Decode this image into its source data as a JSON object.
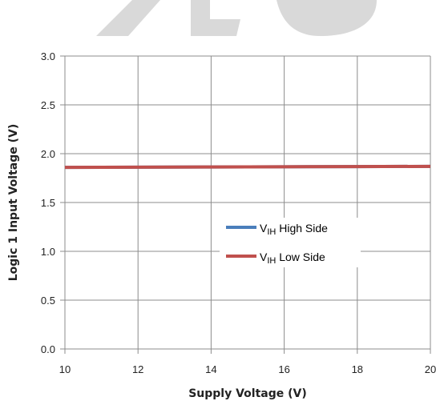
{
  "chart_data": {
    "type": "line",
    "title": "",
    "xlabel": "Supply Voltage (V)",
    "ylabel": "Logic 1 Input Voltage (V)",
    "xlim": [
      10,
      20
    ],
    "ylim": [
      0.0,
      3.0
    ],
    "x_ticks": [
      "10",
      "12",
      "14",
      "16",
      "18",
      "20"
    ],
    "y_ticks": [
      "0.0",
      "0.5",
      "1.0",
      "1.5",
      "2.0",
      "2.5",
      "3.0"
    ],
    "grid": true,
    "legend_position": "center-right",
    "series": [
      {
        "name_main": "V",
        "name_sub": "IH",
        "name_rest": " High Side",
        "color": "#4a7ebb",
        "x": [
          10,
          12,
          14,
          16,
          18,
          20
        ],
        "y": [
          1.86,
          1.862,
          1.864,
          1.866,
          1.868,
          1.87
        ]
      },
      {
        "name_main": "V",
        "name_sub": "IH",
        "name_rest": " Low Side",
        "color": "#c0504d",
        "x": [
          10,
          12,
          14,
          16,
          18,
          20
        ],
        "y": [
          1.86,
          1.862,
          1.864,
          1.866,
          1.868,
          1.87
        ]
      }
    ]
  },
  "colors": {
    "grid": "#8c8c8c",
    "watermark": "#d9d9d9"
  }
}
